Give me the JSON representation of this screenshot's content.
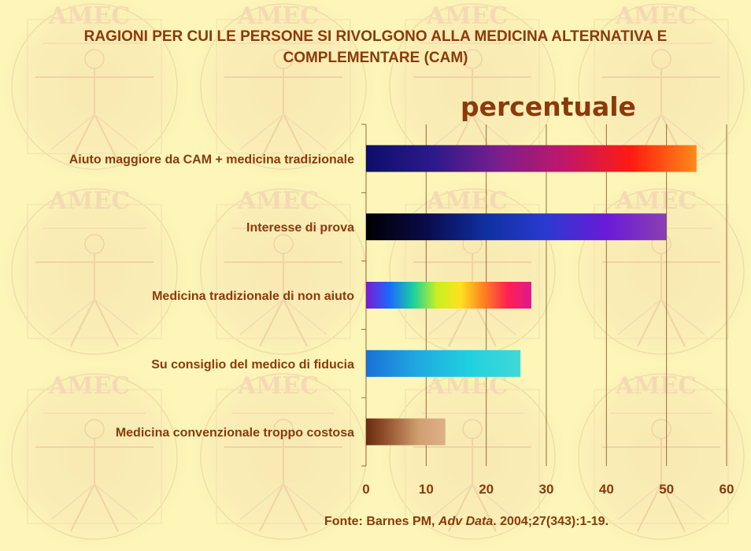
{
  "title_line1": "RAGIONI PER CUI LE PERSONE SI RIVOLGONO ALLA MEDICINA ALTERNATIVA E",
  "title_line2": "COMPLEMENTARE (CAM)",
  "watermark_text": "AMEC",
  "source": {
    "prefix": "Fonte: Barnes PM, ",
    "journal": "Adv Data",
    "suffix": ". 2004;27(343):1-19."
  },
  "colors": {
    "text": "#8a3a0c",
    "background": "#fdf6b8"
  },
  "chart_data": {
    "type": "bar",
    "orientation": "horizontal",
    "title": "percentuale",
    "categories": [
      "Aiuto maggiore da CAM + medicina tradizionale",
      "Interesse di prova",
      "Medicina tradizionale di non aiuto",
      "Su consiglio del medico di fiducia",
      "Medicina convenzionale troppo costosa"
    ],
    "values": [
      55,
      50,
      27.5,
      25.7,
      13.2
    ],
    "xlim": [
      0,
      60
    ],
    "xticks": [
      "0",
      "10",
      "20",
      "30",
      "40",
      "50",
      "60"
    ],
    "grid": "vertical",
    "legend": "none",
    "bar_gradients": [
      [
        "#0d0d6b",
        "#2a1a8a",
        "#7a1e8e",
        "#c0186a",
        "#ff1a10",
        "#ff8a1a"
      ],
      [
        "#000000",
        "#0a0a4a",
        "#1030a0",
        "#2a3ad0",
        "#6a1ad8",
        "#8a40b0"
      ],
      [
        "#7a1ad0",
        "#1a6aff",
        "#1ad0a0",
        "#c8f020",
        "#ffe020",
        "#ff8020",
        "#ff2050",
        "#e01890"
      ],
      [
        "#1a70d8",
        "#20a8e0",
        "#20d0e0",
        "#40d8d8"
      ],
      [
        "#6a2a10",
        "#a0603a",
        "#d0a070",
        "#e0b088"
      ]
    ]
  }
}
